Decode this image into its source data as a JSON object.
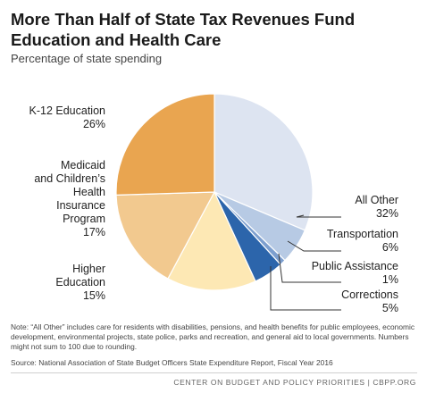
{
  "title_line1": "More Than Half of State Tax Revenues Fund",
  "title_line2": "Education and Health Care",
  "subtitle": "Percentage of state spending",
  "chart_data": {
    "type": "pie",
    "slices": [
      {
        "name": "All Other",
        "value": 32,
        "value_label": "32%",
        "color": "#dde4f1"
      },
      {
        "name": "Transportation",
        "value": 6,
        "value_label": "6%",
        "color": "#b7cae4"
      },
      {
        "name": "Public Assistance",
        "value": 1,
        "value_label": "1%",
        "color": "#7d9fcf"
      },
      {
        "name": "Corrections",
        "value": 5,
        "value_label": "5%",
        "color": "#2c65ab"
      },
      {
        "name": "Higher Education",
        "value": 15,
        "value_label": "15%",
        "color": "#fde8b4"
      },
      {
        "name": "Medicaid and Children's Health Insurance Program",
        "value": 17,
        "value_label": "17%",
        "color": "#f2c98f"
      },
      {
        "name": "K-12 Education",
        "value": 26,
        "value_label": "26%",
        "color": "#e9a550"
      }
    ],
    "label_lines": {
      "All Other": [
        "All Other"
      ],
      "Transportation": [
        "Transportation"
      ],
      "Public Assistance": [
        "Public Assistance"
      ],
      "Corrections": [
        "Corrections"
      ],
      "Higher Education": [
        "Higher",
        "Education"
      ],
      "Medicaid and Children's Health Insurance Program": [
        "Medicaid",
        "and Children’s",
        "Health",
        "Insurance",
        "Program"
      ],
      "K-12 Education": [
        "K-12 Education"
      ]
    }
  },
  "note": "Note: “All Other” includes care for residents with disabilities, pensions, and health benefits for public employees, economic development, environmental projects, state police, parks and recreation, and general aid to local governments. Numbers might not sum to 100 due to rounding.",
  "source": "Source: National Association of State Budget Officers State Expenditure Report, Fiscal Year 2016",
  "footer": {
    "org": "CENTER ON BUDGET AND POLICY PRIORITIES",
    "separator": "|",
    "site": "CBPP.ORG"
  }
}
